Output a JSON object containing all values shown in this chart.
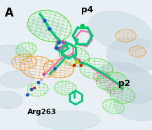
{
  "title_label": "A",
  "p4_label": "p4",
  "p2_label": "p2",
  "arg_label": "Arg263",
  "bg_color": "#e8f0f5",
  "fig_width": 2.21,
  "fig_height": 1.89,
  "dpi": 100
}
